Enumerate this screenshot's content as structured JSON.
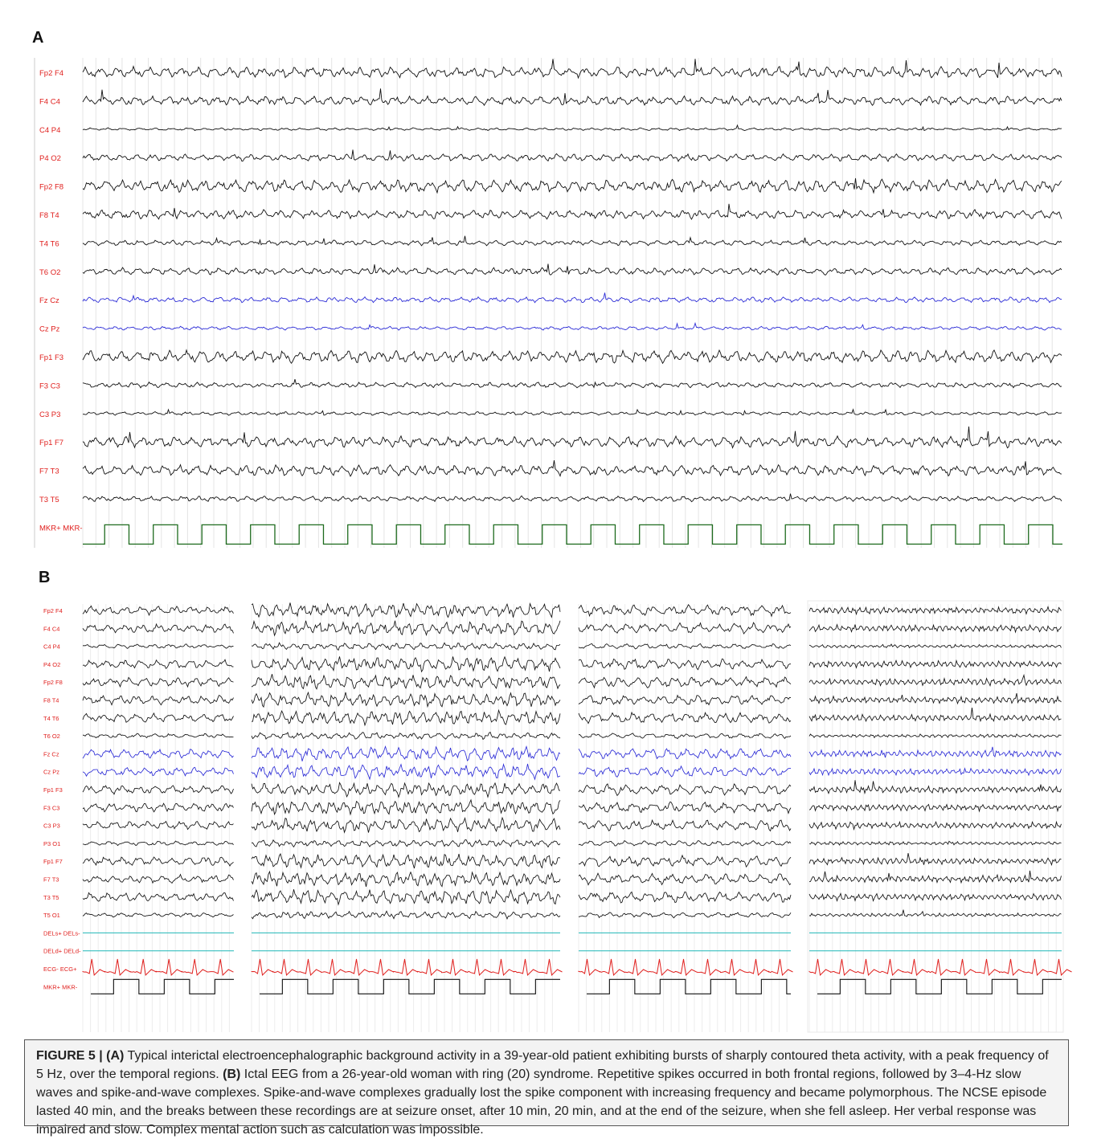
{
  "panel_a": {
    "letter": "A",
    "channels": [
      {
        "label": "Fp2 F4",
        "color": "black",
        "amp": 6
      },
      {
        "label": "F4 C4",
        "color": "black",
        "amp": 5
      },
      {
        "label": "C4 P4",
        "color": "black",
        "amp": 1.5
      },
      {
        "label": "P4 O2",
        "color": "black",
        "amp": 4
      },
      {
        "label": "Fp2 F8",
        "color": "black",
        "amp": 7
      },
      {
        "label": "F8 T4",
        "color": "black",
        "amp": 5
      },
      {
        "label": "T4 T6",
        "color": "black",
        "amp": 3
      },
      {
        "label": "T6 O2",
        "color": "black",
        "amp": 4
      },
      {
        "label": "Fz Cz",
        "color": "blue",
        "amp": 3
      },
      {
        "label": "Cz Pz",
        "color": "blue",
        "amp": 2
      },
      {
        "label": "Fp1 F3",
        "color": "black",
        "amp": 7
      },
      {
        "label": "F3 C3",
        "color": "black",
        "amp": 3
      },
      {
        "label": "C3 P3",
        "color": "black",
        "amp": 2
      },
      {
        "label": "Fp1 F7",
        "color": "black",
        "amp": 6
      },
      {
        "label": "F7 T3",
        "color": "black",
        "amp": 6
      },
      {
        "label": "T3 T5",
        "color": "black",
        "amp": 3
      },
      {
        "label": "MKR+ MKR-",
        "color": "marker",
        "amp": 0
      }
    ]
  },
  "panel_b": {
    "letter": "B",
    "channels": [
      {
        "label": "Fp2 F4",
        "color": "black"
      },
      {
        "label": "F4 C4",
        "color": "black"
      },
      {
        "label": "C4 P4",
        "color": "black"
      },
      {
        "label": "P4 O2",
        "color": "black"
      },
      {
        "label": "Fp2 F8",
        "color": "black"
      },
      {
        "label": "F8 T4",
        "color": "black"
      },
      {
        "label": "T4 T6",
        "color": "black"
      },
      {
        "label": "T6 O2",
        "color": "black"
      },
      {
        "label": "Fz Cz",
        "color": "blue"
      },
      {
        "label": "Cz Pz",
        "color": "blue"
      },
      {
        "label": "Fp1 F3",
        "color": "black"
      },
      {
        "label": "F3 C3",
        "color": "black"
      },
      {
        "label": "C3 P3",
        "color": "black"
      },
      {
        "label": "P3 O1",
        "color": "black"
      },
      {
        "label": "Fp1 F7",
        "color": "black"
      },
      {
        "label": "F7 T3",
        "color": "black"
      },
      {
        "label": "T3 T5",
        "color": "black"
      },
      {
        "label": "T5 O1",
        "color": "black"
      },
      {
        "label": "DELs+ DELs-",
        "color": "cyan"
      },
      {
        "label": "DELd+ DELd-",
        "color": "cyan"
      },
      {
        "label": "ECG- ECG+",
        "color": "ecg"
      },
      {
        "label": "MKR+ MKR-",
        "color": "marker"
      }
    ],
    "segments": [
      {
        "id": "onset",
        "freq": 5.5,
        "amp": 5
      },
      {
        "id": "10min",
        "freq": 4.2,
        "amp": 8
      },
      {
        "id": "20min",
        "freq": 6,
        "amp": 6
      },
      {
        "id": "end",
        "freq": 2,
        "amp": 4
      }
    ]
  },
  "colors": {
    "label": "#e0201e",
    "black_trace": "#111111",
    "blue_trace": "#2b2bd6",
    "cyan_trace": "#1fb7b7",
    "ecg_trace": "#e0201e",
    "marker_a": "#1e6b1e",
    "marker_b": "#111111",
    "grid": "#e4e4e4"
  },
  "caption": {
    "figure_label": "FIGURE 5 |",
    "a_tag": "(A)",
    "a_text": "Typical interictal electroencephalographic background activity in a 39-year-old patient exhibiting bursts of sharply contoured theta activity, with a peak frequency of 5 Hz, over the temporal regions.",
    "b_tag": "(B)",
    "b_text": "Ictal EEG from a 26-year-old woman with ring (20) syndrome. Repetitive spikes occurred in both frontal regions, followed by 3–4-Hz slow waves and spike-and-wave complexes. Spike-and-wave complexes gradually lost the spike component with increasing frequency and became polymorphous. The NCSE episode lasted 40 min, and the breaks between these recordings are at seizure onset, after 10 min, 20 min, and at the end of the seizure, when she fell asleep. Her verbal response was impaired and slow. Complex mental action such as calculation was impossible."
  }
}
